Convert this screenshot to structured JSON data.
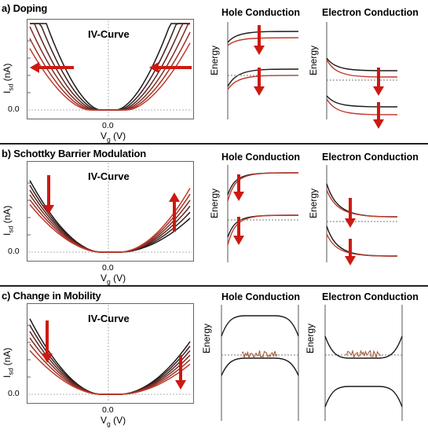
{
  "sections": [
    {
      "title": "a) Doping",
      "iv_label": "IV-Curve",
      "hole_title": "Hole Conduction",
      "electron_title": "Electron Conduction"
    },
    {
      "title": "b) Schottky Barrier Modulation",
      "iv_label": "IV-Curve",
      "hole_title": "Hole Conduction",
      "electron_title": "Electron Conduction"
    },
    {
      "title": "c) Change in Mobility",
      "iv_label": "IV-Curve",
      "hole_title": "Hole Conduction",
      "electron_title": "Electron Conduction"
    }
  ],
  "axes": {
    "ylabel": "I",
    "ylabel_sub": "sd",
    "ylabel_unit": " (nA)",
    "xlabel": "V",
    "xlabel_sub": "g",
    "xlabel_unit": " (V)",
    "x_zero_tick": "0.0",
    "y_zero_tick": "0.0",
    "energy": "Energy"
  },
  "colors": {
    "dark_curve": "#1a1a1a",
    "red_curve": "#c0392b",
    "arrow": "#cc1a12",
    "frame": "#555555",
    "dotted": "#777777"
  }
}
